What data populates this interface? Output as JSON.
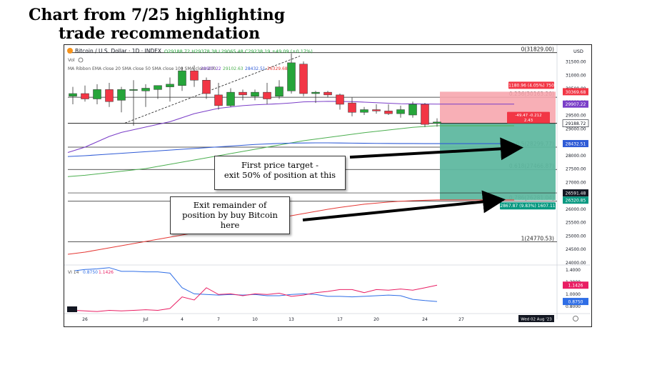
{
  "slide": {
    "title_line1": "Chart from 7/25 highlighting",
    "title_line2": "trade recommendation"
  },
  "header": {
    "symbol": "Bitcoin / U.S. Dollar · 1D · INDEX",
    "ohlc": "O29188.72 H29378.38 L29065.48 C29238.19 +49.09 (+0.17%)",
    "vol": "Vol",
    "ma_label": "MA Ribbon EMA close 20 SMA close 50 SMA close 100 SMA close 200",
    "ma_values": [
      "29907.22",
      "29102.63",
      "28432.51",
      "26329.68"
    ],
    "currency": "USD"
  },
  "colors": {
    "ma1": "#7b3fc8",
    "ma2": "#4caf50",
    "ma3": "#2f5bd6",
    "ma4": "#e53935",
    "up": "#26a53a",
    "down": "#f23645",
    "stop": "#f7a6ae",
    "target": "#5fb8a0"
  },
  "chart_data": {
    "type": "candlestick",
    "y_ticks": [
      24000,
      24500,
      25000,
      25500,
      26000,
      26500,
      27000,
      27500,
      28000,
      28500,
      29000,
      29500,
      30000,
      30500,
      31000,
      31500
    ],
    "ylim": [
      23900,
      31900
    ],
    "x_ticks": [
      {
        "label": "26",
        "i": 1
      },
      {
        "label": "Jul",
        "i": 6
      },
      {
        "label": "4",
        "i": 9
      },
      {
        "label": "7",
        "i": 12
      },
      {
        "label": "10",
        "i": 15
      },
      {
        "label": "13",
        "i": 18
      },
      {
        "label": "17",
        "i": 22
      },
      {
        "label": "20",
        "i": 25
      },
      {
        "label": "24",
        "i": 29
      },
      {
        "label": "27",
        "i": 32
      }
    ],
    "candles": [
      {
        "o": 30200,
        "h": 30550,
        "l": 29900,
        "c": 30300
      },
      {
        "o": 30300,
        "h": 30600,
        "l": 30000,
        "c": 30100
      },
      {
        "o": 30100,
        "h": 30650,
        "l": 29900,
        "c": 30450
      },
      {
        "o": 30450,
        "h": 30700,
        "l": 29800,
        "c": 30000
      },
      {
        "o": 30050,
        "h": 30550,
        "l": 29600,
        "c": 30450
      },
      {
        "o": 30450,
        "h": 30800,
        "l": 29100,
        "c": 30450
      },
      {
        "o": 30400,
        "h": 30650,
        "l": 29800,
        "c": 30500
      },
      {
        "o": 30450,
        "h": 30600,
        "l": 30100,
        "c": 30600
      },
      {
        "o": 30550,
        "h": 30900,
        "l": 30000,
        "c": 30650
      },
      {
        "o": 30600,
        "h": 31300,
        "l": 30400,
        "c": 31150
      },
      {
        "o": 31150,
        "h": 31350,
        "l": 30550,
        "c": 30800
      },
      {
        "o": 30800,
        "h": 30900,
        "l": 30100,
        "c": 30300
      },
      {
        "o": 30250,
        "h": 30700,
        "l": 29700,
        "c": 29850
      },
      {
        "o": 29850,
        "h": 30500,
        "l": 29800,
        "c": 30350
      },
      {
        "o": 30350,
        "h": 30450,
        "l": 30050,
        "c": 30250
      },
      {
        "o": 30200,
        "h": 30450,
        "l": 30050,
        "c": 30350
      },
      {
        "o": 30350,
        "h": 30700,
        "l": 29900,
        "c": 30100
      },
      {
        "o": 30200,
        "h": 30800,
        "l": 30100,
        "c": 30550
      },
      {
        "o": 30400,
        "h": 31800,
        "l": 30300,
        "c": 31450
      },
      {
        "o": 31400,
        "h": 31500,
        "l": 30200,
        "c": 30300
      },
      {
        "o": 30300,
        "h": 30400,
        "l": 29950,
        "c": 30350
      },
      {
        "o": 30350,
        "h": 30400,
        "l": 30150,
        "c": 30250
      },
      {
        "o": 30250,
        "h": 30300,
        "l": 29700,
        "c": 29900
      },
      {
        "o": 29950,
        "h": 30150,
        "l": 29450,
        "c": 29600
      },
      {
        "o": 29600,
        "h": 29800,
        "l": 29500,
        "c": 29700
      },
      {
        "o": 29700,
        "h": 29900,
        "l": 29550,
        "c": 29650
      },
      {
        "o": 29650,
        "h": 29900,
        "l": 29500,
        "c": 29550
      },
      {
        "o": 29550,
        "h": 29850,
        "l": 29400,
        "c": 29700
      },
      {
        "o": 29500,
        "h": 30000,
        "l": 29400,
        "c": 29900
      },
      {
        "o": 29900,
        "h": 29950,
        "l": 29050,
        "c": 29150
      },
      {
        "o": 29188,
        "h": 29378,
        "l": 29065,
        "c": 29238
      }
    ],
    "levels": [
      {
        "label": "0(31829.00)",
        "value": 31829
      },
      {
        "label": "0.236(30163.20)",
        "value": 30163
      },
      {
        "label": "0.5(28299.77)",
        "value": 28300
      },
      {
        "label": "0.618(27466.87)",
        "value": 27467
      },
      {
        "label": "0.786(26281.04)",
        "value": 26281
      },
      {
        "label": "1(24770.53)",
        "value": 24771
      }
    ],
    "position": {
      "entry": 29188.72,
      "stop": 30369.68,
      "target": 26320.85,
      "stop_label": "1180.96 (4.05%) 750",
      "target_label": "2867.87 (9.83%) 1607.11",
      "mid_label_1": "-49.47 -0.212",
      "mid_label_2": "2.43"
    },
    "price_tags": [
      {
        "label": "30369.68",
        "value": 30369.68,
        "color": "#f23645"
      },
      {
        "label": "29907.22",
        "value": 29907.22,
        "color": "#7b3fc8"
      },
      {
        "label": "29188.72",
        "value": 29188.72,
        "color": "#ffffff"
      },
      {
        "label": "28432.51",
        "value": 28432.51,
        "color": "#2f5bd6"
      },
      {
        "label": "26591.48",
        "value": 26591.48,
        "color": "#131722"
      },
      {
        "label": "26320.85",
        "value": 26320.85,
        "color": "#089981"
      }
    ],
    "ma": [
      {
        "name": "EMA 20",
        "color": "#7b3fc8",
        "values": [
          28100,
          28300,
          28500,
          28700,
          28850,
          28950,
          29050,
          29150,
          29250,
          29400,
          29550,
          29650,
          29750,
          29800,
          29850,
          29880,
          29900,
          29920,
          29950,
          29990,
          30000,
          30010,
          30005,
          30000,
          29980,
          29960,
          29940,
          29920,
          29915,
          29910,
          29907
        ]
      },
      {
        "name": "SMA 50",
        "color": "#4caf50",
        "values": [
          27200,
          27250,
          27300,
          27350,
          27400,
          27450,
          27500,
          27580,
          27660,
          27740,
          27820,
          27900,
          27980,
          28060,
          28140,
          28220,
          28300,
          28380,
          28460,
          28540,
          28600,
          28660,
          28720,
          28780,
          28840,
          28890,
          28940,
          28990,
          29040,
          29070,
          29100
        ]
      },
      {
        "name": "SMA 100",
        "color": "#2f5bd6",
        "values": [
          27950,
          27980,
          28010,
          28040,
          28070,
          28100,
          28130,
          28160,
          28190,
          28220,
          28250,
          28280,
          28310,
          28340,
          28370,
          28400,
          28420,
          28440,
          28450,
          28455,
          28460,
          28460,
          28455,
          28450,
          28445,
          28440,
          28438,
          28436,
          28434,
          28433,
          28432
        ]
      },
      {
        "name": "SMA 200",
        "color": "#e53935",
        "values": [
          24300,
          24380,
          24460,
          24540,
          24620,
          24700,
          24780,
          24860,
          24940,
          25020,
          25100,
          25180,
          25260,
          25340,
          25420,
          25500,
          25580,
          25660,
          25740,
          25820,
          25900,
          25980,
          26050,
          26110,
          26170,
          26210,
          26250,
          26280,
          26300,
          26315,
          26329
        ]
      }
    ],
    "vi": {
      "label": "VI 14",
      "plus_value": "0.8750",
      "minus_value": "1.1426",
      "ticks": [
        "1.4000",
        "1.2000",
        "1.0000",
        "0.8000"
      ],
      "ylim": [
        0.7,
        1.45
      ],
      "plus": [
        1.38,
        1.4,
        1.41,
        1.43,
        1.37,
        1.37,
        1.36,
        1.36,
        1.34,
        1.1,
        1.0,
        0.99,
        0.98,
        0.99,
        0.98,
        0.99,
        0.97,
        0.97,
        0.99,
        1.0,
        0.99,
        0.96,
        0.96,
        0.95,
        0.96,
        0.97,
        0.98,
        0.97,
        0.91,
        0.89,
        0.875
      ],
      "minus": [
        0.73,
        0.72,
        0.71,
        0.73,
        0.72,
        0.73,
        0.74,
        0.73,
        0.76,
        0.95,
        0.9,
        1.1,
        0.99,
        1.0,
        0.97,
        1.0,
        0.99,
        1.01,
        0.96,
        0.98,
        1.02,
        1.04,
        1.07,
        1.07,
        1.02,
        1.07,
        1.06,
        1.08,
        1.06,
        1.1,
        1.1426
      ]
    },
    "date_tag": "Wed 02 Aug '23"
  },
  "callouts": {
    "first_target": [
      "First price target -",
      "exit 50% of position at this"
    ],
    "remainder": [
      "Exit remainder of",
      "position by buy Bitcoin",
      "here"
    ]
  }
}
